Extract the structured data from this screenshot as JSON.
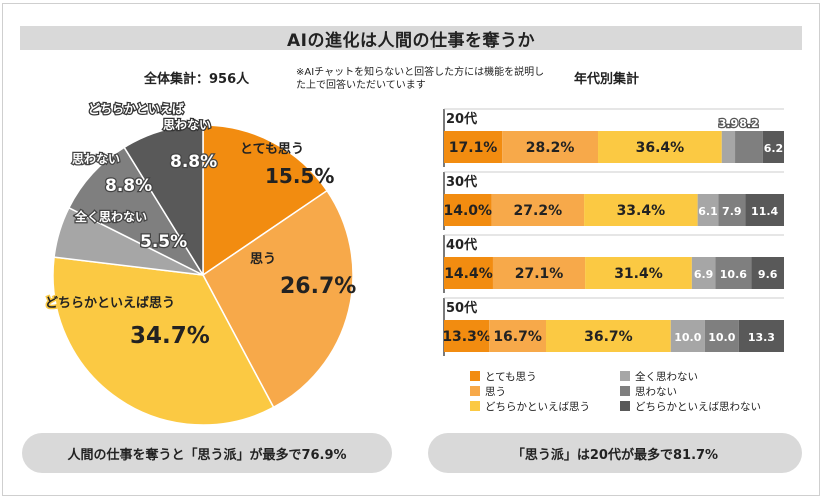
{
  "title": "AIの進化は人間の仕事を奪うか",
  "total_label": "全体集計：956人",
  "note": "※AIチャットを知らないと回答した方には機能を説明した上で回答いただいています",
  "age_label": "年代別集計",
  "conclusion_left": "人間の仕事を奪うと「思う派」が最多で76.9%",
  "conclusion_right": "「思う派」は20代が最多で81.7%",
  "colors": {
    "とても思う": "#f28c10",
    "思う": "#f7a94a",
    "どちらかといえば思う": "#fbc943",
    "全く思わない": "#a6a6a6",
    "思わない": "#7f7f7f",
    "どちらかといえば思わない": "#595959"
  },
  "legend": [
    "とても思う",
    "思う",
    "どちらかといえば思う",
    "全く思わない",
    "思わない",
    "どちらかといえば思わない"
  ],
  "chart_data": [
    {
      "type": "pie",
      "title": "全体集計：956人",
      "slices": [
        {
          "label": "とても思う",
          "value": 15.5,
          "display": "15.5%"
        },
        {
          "label": "思う",
          "value": 26.7,
          "display": "26.7%"
        },
        {
          "label": "どちらかといえば思う",
          "value": 34.7,
          "display": "34.7%"
        },
        {
          "label": "全く思わない",
          "value": 5.5,
          "display": "5.5%"
        },
        {
          "label": "思わない",
          "value": 8.8,
          "display": "8.8%"
        },
        {
          "label": "どちらかといえば思わない",
          "value": 8.8,
          "display": "8.8%"
        }
      ]
    },
    {
      "type": "bar",
      "orientation": "horizontal",
      "stacked": true,
      "title": "年代別集計",
      "categories": [
        "20代",
        "30代",
        "40代",
        "50代"
      ],
      "series": [
        {
          "name": "とても思う",
          "values": [
            17.1,
            14.0,
            14.4,
            13.3
          ],
          "labels": [
            "17.1%",
            "14.0%",
            "14.4%",
            "13.3%"
          ]
        },
        {
          "name": "思う",
          "values": [
            28.2,
            27.2,
            27.1,
            16.7
          ],
          "labels": [
            "28.2%",
            "27.2%",
            "27.1%",
            "16.7%"
          ]
        },
        {
          "name": "どちらかといえば思う",
          "values": [
            36.4,
            33.4,
            31.4,
            36.7
          ],
          "labels": [
            "36.4%",
            "33.4%",
            "31.4%",
            "36.7%"
          ]
        },
        {
          "name": "全く思わない",
          "values": [
            3.9,
            6.1,
            6.9,
            10.0
          ],
          "labels": [
            "3.9",
            "6.1",
            "6.9",
            "10.0"
          ]
        },
        {
          "name": "思わない",
          "values": [
            8.2,
            7.9,
            10.6,
            10.0
          ],
          "labels": [
            "8.2",
            "7.9",
            "10.6",
            "10.0"
          ]
        },
        {
          "name": "どちらかといえば思わない",
          "values": [
            6.2,
            11.4,
            9.6,
            13.3
          ],
          "labels": [
            "6.2",
            "11.4",
            "9.6",
            "13.3"
          ]
        }
      ]
    }
  ]
}
